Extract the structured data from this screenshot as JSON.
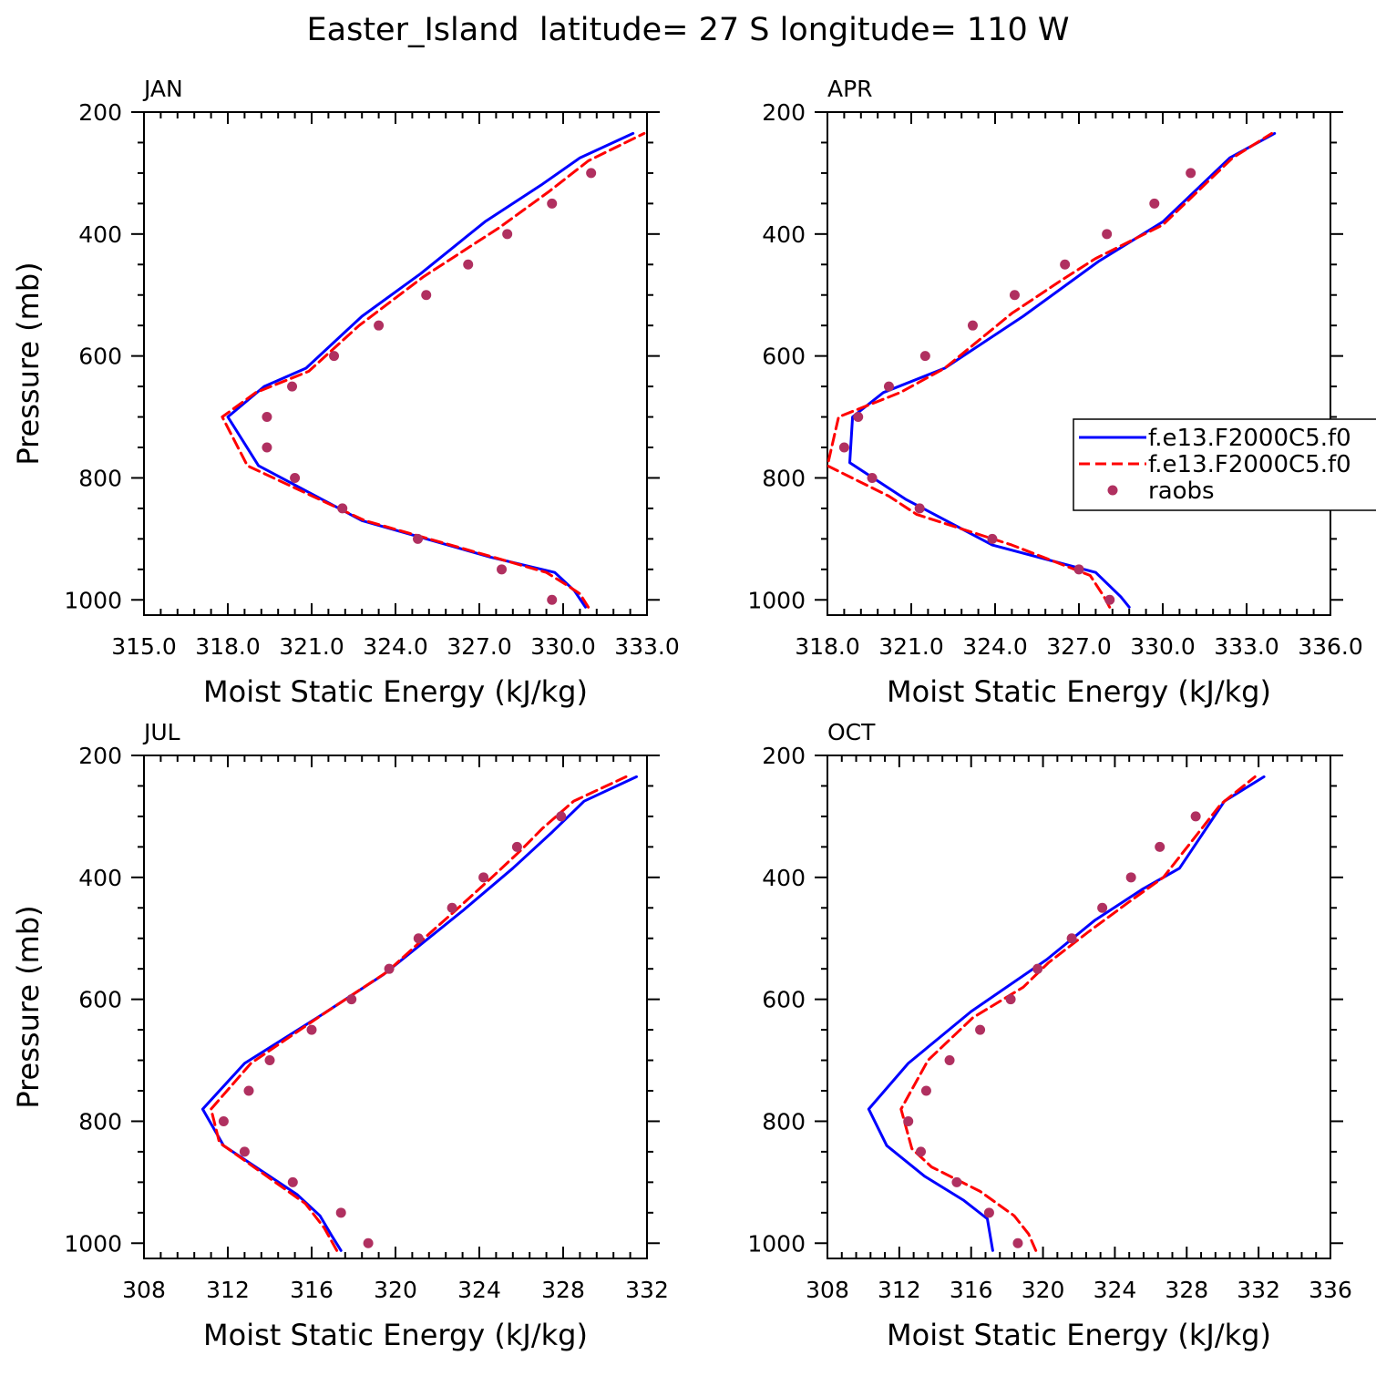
{
  "title": "Easter_Island  latitude= 27 S longitude= 110 W",
  "colors": {
    "model1": "#0000ff",
    "model2": "#ff0000",
    "obs": "#b03060"
  },
  "legend": {
    "entries": [
      {
        "label": "f.e13.F2000C5.f0",
        "style": "solid",
        "color": "#0000ff"
      },
      {
        "label": "f.e13.F2000C5.f0",
        "style": "dashed",
        "color": "#ff0000"
      },
      {
        "label": "raobs",
        "style": "marker",
        "color": "#b03060"
      }
    ]
  },
  "chart_data": [
    {
      "type": "line",
      "title": "JAN",
      "xlabel": "Moist Static Energy (kJ/kg)",
      "ylabel": "Pressure (mb)",
      "xlim": [
        315,
        333
      ],
      "ylim": [
        1025,
        200
      ],
      "xticks": [
        315,
        318,
        321,
        324,
        327,
        330,
        333
      ],
      "xticklabels": [
        "315.0",
        "318.0",
        "321.0",
        "324.0",
        "327.0",
        "330.0",
        "333.0"
      ],
      "yticks": [
        200,
        400,
        600,
        800,
        1000
      ],
      "yticklabels": [
        "200",
        "400",
        "600",
        "800",
        "1000"
      ],
      "series": [
        {
          "style": "solid",
          "color": "#0000ff",
          "x": [
            330.8,
            330.4,
            329.7,
            327.4,
            322.8,
            319.1,
            318.0,
            319.3,
            320.8,
            322.8,
            324.9,
            327.2,
            329.2,
            330.6,
            332.5
          ],
          "y": [
            1012,
            985,
            955,
            930,
            870,
            780,
            700,
            650,
            620,
            535,
            465,
            380,
            320,
            275,
            235
          ]
        },
        {
          "style": "dashed",
          "color": "#ff0000",
          "x": [
            330.9,
            330.6,
            330.1,
            329.4,
            327.5,
            322.9,
            318.7,
            317.8,
            319.0,
            320.9,
            322.7,
            325.0,
            327.7,
            329.5,
            330.9,
            332.9
          ],
          "y": [
            1012,
            990,
            975,
            955,
            930,
            870,
            780,
            700,
            660,
            625,
            550,
            470,
            390,
            330,
            280,
            235
          ]
        },
        {
          "style": "markers",
          "color": "#b03060",
          "x": [
            329.6,
            327.8,
            324.8,
            322.1,
            320.4,
            319.4,
            319.4,
            320.3,
            321.8,
            323.4,
            325.1,
            326.6,
            328.0,
            329.6,
            331.0
          ],
          "y": [
            1000,
            950,
            900,
            850,
            800,
            750,
            700,
            650,
            600,
            550,
            500,
            450,
            400,
            350,
            300
          ]
        }
      ]
    },
    {
      "type": "line",
      "title": "APR",
      "xlabel": "Moist Static Energy (kJ/kg)",
      "ylabel": "",
      "xlim": [
        318,
        336
      ],
      "ylim": [
        1025,
        200
      ],
      "xticks": [
        318,
        321,
        324,
        327,
        330,
        333,
        336
      ],
      "xticklabels": [
        "318.0",
        "321.0",
        "324.0",
        "327.0",
        "330.0",
        "333.0",
        "336.0"
      ],
      "yticks": [
        200,
        400,
        600,
        800,
        1000
      ],
      "yticklabels": [
        "200",
        "400",
        "600",
        "800",
        "1000"
      ],
      "series": [
        {
          "style": "solid",
          "color": "#0000ff",
          "x": [
            328.8,
            328.5,
            327.6,
            323.9,
            320.8,
            318.8,
            318.9,
            320.0,
            322.2,
            325.0,
            327.7,
            330.0,
            332.4,
            334.0
          ],
          "y": [
            1012,
            995,
            955,
            910,
            835,
            775,
            700,
            660,
            620,
            535,
            445,
            380,
            275,
            235
          ]
        },
        {
          "style": "dashed",
          "color": "#ff0000",
          "x": [
            328.1,
            327.9,
            327.4,
            324.6,
            321.2,
            320.2,
            318.0,
            318.4,
            320.6,
            322.2,
            324.6,
            326.4,
            327.6,
            330.0,
            332.5,
            333.9
          ],
          "y": [
            1012,
            995,
            960,
            910,
            860,
            830,
            780,
            700,
            660,
            620,
            530,
            475,
            440,
            385,
            275,
            235
          ]
        },
        {
          "style": "markers",
          "color": "#b03060",
          "x": [
            328.1,
            327.0,
            323.9,
            321.3,
            319.6,
            318.6,
            319.1,
            320.2,
            321.5,
            323.2,
            324.7,
            326.5,
            328.0,
            329.7,
            331.0
          ],
          "y": [
            1000,
            950,
            900,
            850,
            800,
            750,
            700,
            650,
            600,
            550,
            500,
            450,
            400,
            350,
            300
          ]
        }
      ]
    },
    {
      "type": "line",
      "title": "JUL",
      "xlabel": "Moist Static Energy (kJ/kg)",
      "ylabel": "Pressure (mb)",
      "xlim": [
        308,
        332
      ],
      "ylim": [
        1025,
        200
      ],
      "xticks": [
        308,
        312,
        316,
        320,
        324,
        328,
        332
      ],
      "xticklabels": [
        "308",
        "312",
        "316",
        "320",
        "324",
        "328",
        "332"
      ],
      "yticks": [
        200,
        400,
        600,
        800,
        1000
      ],
      "yticklabels": [
        "200",
        "400",
        "600",
        "800",
        "1000"
      ],
      "series": [
        {
          "style": "solid",
          "color": "#0000ff",
          "x": [
            317.4,
            317.0,
            316.4,
            315.3,
            311.8,
            310.8,
            312.8,
            316.5,
            319.4,
            323.2,
            325.6,
            327.5,
            329.0,
            331.5
          ],
          "y": [
            1012,
            990,
            955,
            920,
            840,
            780,
            705,
            625,
            560,
            455,
            385,
            325,
            275,
            235
          ]
        },
        {
          "style": "dashed",
          "color": "#ff0000",
          "x": [
            317.2,
            316.6,
            315.7,
            311.6,
            311.2,
            313.1,
            316.3,
            319.6,
            321.2,
            323.0,
            324.6,
            326.0,
            327.0,
            328.5,
            331.0
          ],
          "y": [
            1012,
            975,
            935,
            835,
            780,
            705,
            630,
            555,
            505,
            450,
            400,
            355,
            320,
            275,
            235
          ]
        },
        {
          "style": "markers",
          "color": "#b03060",
          "x": [
            318.7,
            317.4,
            315.1,
            312.8,
            311.8,
            313.0,
            314.0,
            316.0,
            317.9,
            319.7,
            321.1,
            322.7,
            324.2,
            325.8,
            327.9
          ],
          "y": [
            1000,
            950,
            900,
            850,
            800,
            750,
            700,
            650,
            600,
            550,
            500,
            450,
            400,
            350,
            300
          ]
        }
      ]
    },
    {
      "type": "line",
      "title": "OCT",
      "xlabel": "Moist Static Energy (kJ/kg)",
      "ylabel": "",
      "xlim": [
        308,
        336
      ],
      "ylim": [
        1025,
        200
      ],
      "xticks": [
        308,
        312,
        316,
        320,
        324,
        328,
        332,
        336
      ],
      "xticklabels": [
        "308",
        "312",
        "316",
        "320",
        "324",
        "328",
        "332",
        "336"
      ],
      "yticks": [
        200,
        400,
        600,
        800,
        1000
      ],
      "yticklabels": [
        "200",
        "400",
        "600",
        "800",
        "1000"
      ],
      "series": [
        {
          "style": "solid",
          "color": "#0000ff",
          "x": [
            317.2,
            316.9,
            315.6,
            313.4,
            311.3,
            310.3,
            312.5,
            316.0,
            320.2,
            322.9,
            325.5,
            327.6,
            330.1,
            332.3
          ],
          "y": [
            1012,
            960,
            930,
            890,
            840,
            780,
            705,
            620,
            535,
            470,
            420,
            385,
            275,
            235
          ]
        },
        {
          "style": "dashed",
          "color": "#ff0000",
          "x": [
            319.6,
            319.2,
            318.4,
            316.5,
            313.8,
            312.7,
            312.1,
            313.6,
            316.1,
            318.9,
            320.3,
            322.5,
            324.8,
            326.7,
            328.3,
            329.9,
            331.8
          ],
          "y": [
            1012,
            985,
            955,
            915,
            875,
            845,
            780,
            700,
            630,
            580,
            540,
            490,
            440,
            400,
            340,
            280,
            235
          ]
        },
        {
          "style": "markers",
          "color": "#b03060",
          "x": [
            318.6,
            317.0,
            315.2,
            313.2,
            312.5,
            313.5,
            314.8,
            316.5,
            318.2,
            319.7,
            321.6,
            323.3,
            324.9,
            326.5,
            328.5
          ],
          "y": [
            1000,
            950,
            900,
            850,
            800,
            750,
            700,
            650,
            600,
            550,
            500,
            450,
            400,
            350,
            300
          ]
        }
      ]
    }
  ]
}
